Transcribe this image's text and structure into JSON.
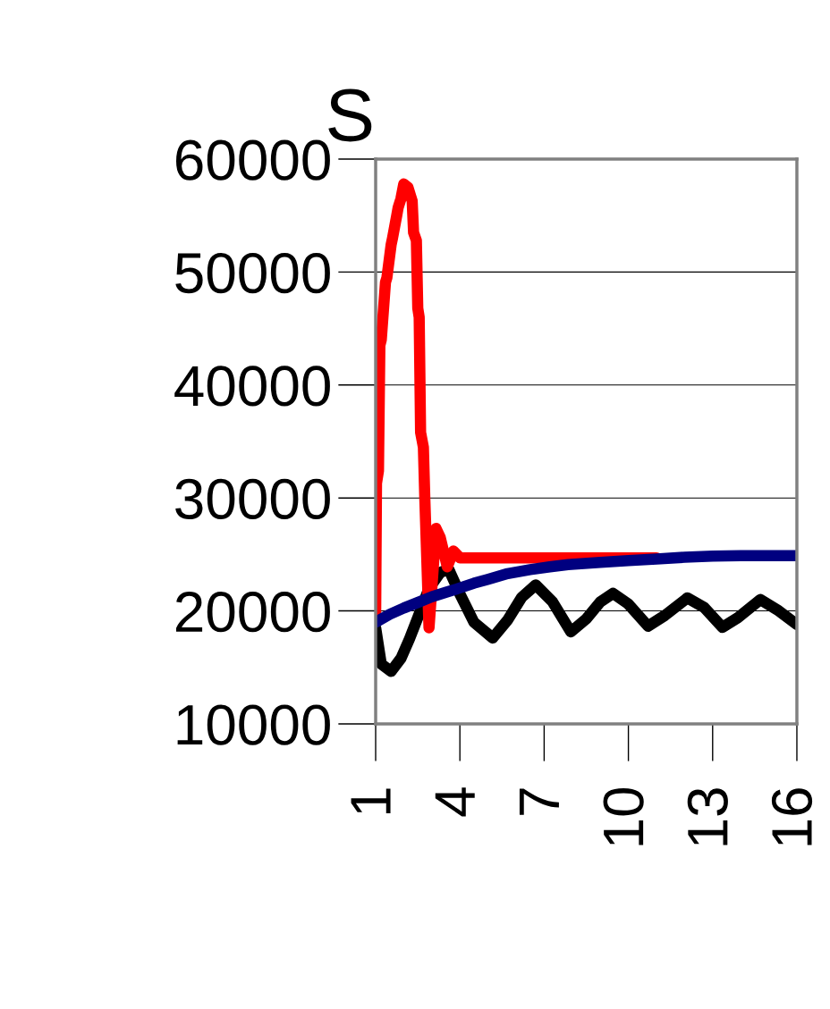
{
  "chart_data": {
    "type": "line",
    "title": "S",
    "grid": "y",
    "line_style": "solid",
    "xlim": [
      1,
      16
    ],
    "xticks": [
      1,
      4,
      7,
      10,
      13,
      16
    ],
    "ylim": [
      10000,
      60000
    ],
    "yticks": [
      10000,
      20000,
      30000,
      40000,
      50000,
      60000
    ],
    "series": [
      {
        "color": "#000000",
        "x": [
          1,
          1.2,
          1.55,
          1.9,
          2.2,
          2.5,
          2.9,
          3.3,
          3.6,
          4.0,
          4.5,
          5.17,
          5.7,
          6.2,
          6.7,
          7.3,
          7.95,
          8.5,
          9.0,
          9.45,
          10.0,
          10.7,
          11.3,
          12.1,
          12.7,
          13.35,
          13.9,
          14.7,
          15.3,
          16
        ],
        "values": [
          18500,
          15300,
          14650,
          15800,
          17500,
          19400,
          22000,
          23400,
          23700,
          21500,
          19000,
          17600,
          19200,
          21200,
          22300,
          20800,
          18150,
          19300,
          20800,
          21550,
          20600,
          18650,
          19600,
          21150,
          20300,
          18550,
          19400,
          21000,
          20100,
          18800
        ]
      },
      {
        "color": "#ff0000",
        "x": [
          1.0,
          1.03,
          1.1,
          1.15,
          1.2,
          1.35,
          1.4,
          1.55,
          1.6,
          1.75,
          1.8,
          1.9,
          2.0,
          2.15,
          2.3,
          2.35,
          2.45,
          2.5,
          2.55,
          2.6,
          2.7,
          2.75,
          2.9,
          3.0,
          3.15,
          3.3,
          3.55,
          3.77,
          4.0,
          8.0,
          11.0
        ],
        "values": [
          19600,
          31300,
          32400,
          43500,
          44000,
          49100,
          49500,
          52400,
          53000,
          55000,
          55700,
          56500,
          57800,
          57500,
          56300,
          53500,
          52800,
          46800,
          46000,
          35800,
          34500,
          30000,
          18500,
          22000,
          27300,
          26500,
          23900,
          25300,
          24700,
          24700,
          24700
        ]
      },
      {
        "color": "#000080",
        "x": [
          1,
          1.5,
          2.0,
          2.5,
          3.0,
          3.5,
          3.9,
          4.5,
          5.0,
          5.7,
          6.5,
          7.2,
          7.85,
          9.0,
          10.0,
          11.0,
          12.0,
          13.0,
          14.0,
          15.0,
          16
        ],
        "values": [
          19000,
          19700,
          20250,
          20750,
          21250,
          21650,
          21950,
          22450,
          22800,
          23300,
          23650,
          23900,
          24100,
          24300,
          24450,
          24600,
          24750,
          24850,
          24900,
          24900,
          24900
        ]
      }
    ]
  }
}
